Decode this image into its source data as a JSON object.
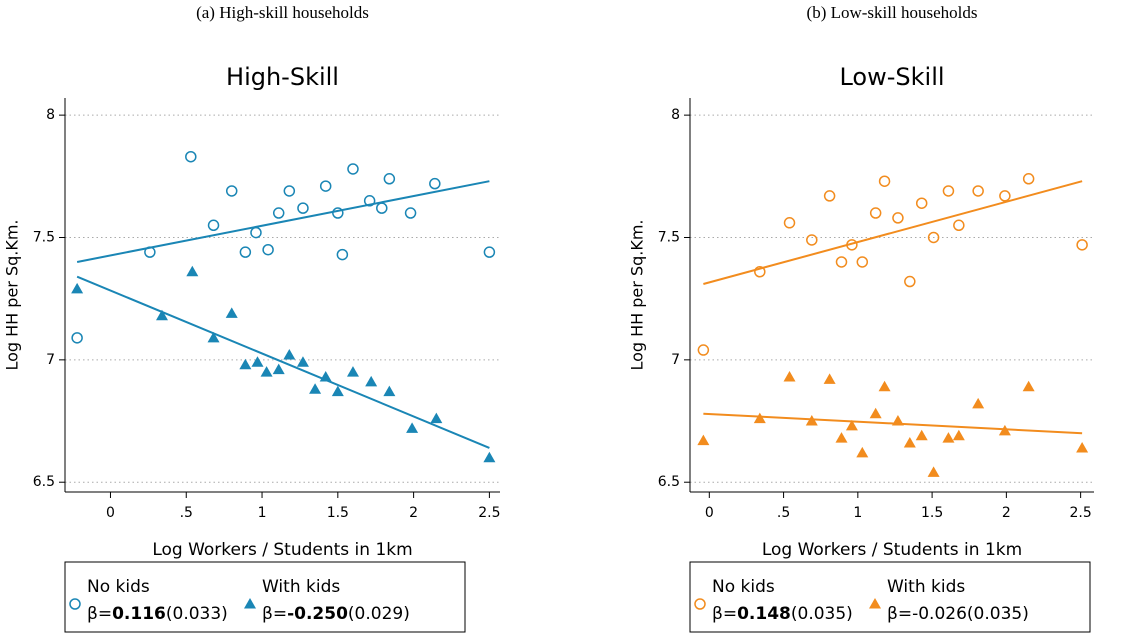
{
  "chart_data": [
    {
      "type": "scatter",
      "caption": "(a) High-skill households",
      "title": "High-Skill",
      "xlabel": "Log Workers / Students in 1km",
      "ylabel": "Log HH per Sq.Km.",
      "xlim": [
        -0.3,
        2.57
      ],
      "ylim": [
        6.46,
        8.07
      ],
      "xticks": [
        0,
        {
          "value": 0.5,
          "label": ".5"
        },
        1,
        1.5,
        2,
        2.5
      ],
      "yticks": [
        6.5,
        7,
        7.5,
        8
      ],
      "grid": true,
      "series": [
        {
          "name": "No kids",
          "color": "#1a86b5",
          "marker": "circle",
          "x": [
            -0.22,
            0.26,
            0.53,
            0.68,
            0.8,
            0.89,
            0.96,
            1.04,
            1.11,
            1.18,
            1.27,
            1.42,
            1.5,
            1.53,
            1.6,
            1.71,
            1.79,
            1.84,
            1.98,
            2.14,
            2.5
          ],
          "values": [
            7.09,
            7.44,
            7.83,
            7.55,
            7.69,
            7.44,
            7.52,
            7.45,
            7.6,
            7.69,
            7.62,
            7.71,
            7.6,
            7.43,
            7.78,
            7.65,
            7.62,
            7.74,
            7.6,
            7.72,
            7.44
          ],
          "fit": {
            "x": [
              -0.22,
              2.5
            ],
            "values": [
              7.4,
              7.73
            ]
          },
          "stat_prefix": "β=",
          "beta": "0.116",
          "beta_bold": true,
          "se": "(0.033)"
        },
        {
          "name": "With kids",
          "color": "#1a86b5",
          "marker": "triangle",
          "x": [
            -0.22,
            0.34,
            0.54,
            0.68,
            0.8,
            0.89,
            0.97,
            1.03,
            1.11,
            1.18,
            1.27,
            1.35,
            1.42,
            1.5,
            1.6,
            1.72,
            1.84,
            1.99,
            2.15,
            2.5
          ],
          "values": [
            7.29,
            7.18,
            7.36,
            7.09,
            7.19,
            6.98,
            6.99,
            6.95,
            6.96,
            7.02,
            6.99,
            6.88,
            6.93,
            6.87,
            6.95,
            6.91,
            6.87,
            6.72,
            6.76,
            6.6
          ],
          "fit": {
            "x": [
              -0.22,
              2.5
            ],
            "values": [
              7.34,
              6.64
            ]
          },
          "stat_prefix": "β=",
          "beta": "-0.250",
          "beta_bold": true,
          "se": "(0.029)"
        }
      ]
    },
    {
      "type": "scatter",
      "caption": "(b) Low-skill households",
      "title": "Low-Skill",
      "xlabel": "Log Workers / Students in 1km",
      "ylabel": "Log HH per Sq.Km.",
      "xlim": [
        -0.13,
        2.59
      ],
      "ylim": [
        6.46,
        8.07
      ],
      "xticks": [
        0,
        {
          "value": 0.5,
          "label": ".5"
        },
        1,
        1.5,
        2,
        2.5
      ],
      "yticks": [
        6.5,
        7,
        7.5,
        8
      ],
      "grid": true,
      "series": [
        {
          "name": "No kids",
          "color": "#f28c1e",
          "marker": "circle",
          "x": [
            -0.04,
            0.34,
            0.54,
            0.69,
            0.81,
            0.89,
            0.96,
            1.03,
            1.12,
            1.18,
            1.27,
            1.35,
            1.43,
            1.51,
            1.61,
            1.68,
            1.81,
            1.99,
            2.15,
            2.51
          ],
          "values": [
            7.04,
            7.36,
            7.56,
            7.49,
            7.67,
            7.4,
            7.47,
            7.4,
            7.6,
            7.73,
            7.58,
            7.32,
            7.64,
            7.5,
            7.69,
            7.55,
            7.69,
            7.67,
            7.74,
            7.47
          ],
          "fit": {
            "x": [
              -0.04,
              2.51
            ],
            "values": [
              7.31,
              7.73
            ]
          },
          "stat_prefix": "β=",
          "beta": "0.148",
          "beta_bold": true,
          "se": "(0.035)"
        },
        {
          "name": "With kids",
          "color": "#f28c1e",
          "marker": "triangle",
          "x": [
            -0.04,
            0.34,
            0.54,
            0.69,
            0.81,
            0.89,
            0.96,
            1.03,
            1.12,
            1.18,
            1.27,
            1.35,
            1.43,
            1.51,
            1.61,
            1.68,
            1.81,
            1.99,
            2.15,
            2.51
          ],
          "values": [
            6.67,
            6.76,
            6.93,
            6.75,
            6.92,
            6.68,
            6.73,
            6.62,
            6.78,
            6.89,
            6.75,
            6.66,
            6.69,
            6.54,
            6.68,
            6.69,
            6.82,
            6.71,
            6.89,
            6.64
          ],
          "fit": {
            "x": [
              -0.04,
              2.51
            ],
            "values": [
              6.78,
              6.7
            ]
          },
          "stat_prefix": "β=",
          "beta": "-0.026",
          "beta_bold": false,
          "se": "(0.035)"
        }
      ]
    }
  ]
}
